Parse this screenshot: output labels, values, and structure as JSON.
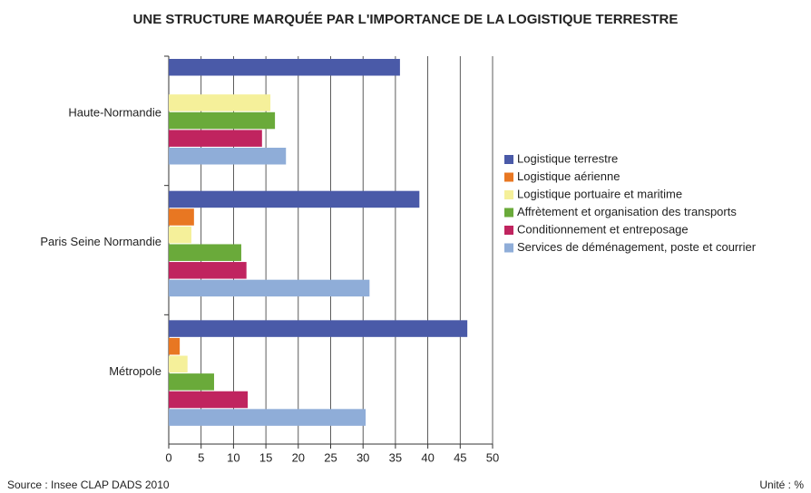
{
  "chart_data": {
    "type": "hbar",
    "title": "UNE STRUCTURE MARQUÉE PAR L'IMPORTANCE DE LA LOGISTIQUE TERRESTRE",
    "categories": [
      "Haute-Normandie",
      "Paris Seine Normandie",
      "Métropole"
    ],
    "series": [
      {
        "name": "Logistique terrestre",
        "color": "#4a5aa8",
        "values": [
          35.7,
          38.7,
          46.1
        ]
      },
      {
        "name": "Logistique aérienne",
        "color": "#e87722",
        "values": [
          null,
          3.9,
          1.7
        ]
      },
      {
        "name": "Logistique portuaire et maritime",
        "color": "#f5f09a",
        "values": [
          15.7,
          3.5,
          2.9
        ]
      },
      {
        "name": "Affrètement et organisation des transports",
        "color": "#6aaa3a",
        "values": [
          16.4,
          11.2,
          7.0
        ]
      },
      {
        "name": "Conditionnement et entreposage",
        "color": "#c0245f",
        "values": [
          14.4,
          12.0,
          12.2
        ]
      },
      {
        "name": "Services de déménagement, poste et courrier",
        "color": "#8fadd8",
        "values": [
          18.1,
          31.0,
          30.4
        ]
      }
    ],
    "xlim": [
      0,
      50
    ],
    "xticks": [
      0,
      5,
      10,
      15,
      20,
      25,
      30,
      35,
      40,
      45,
      50
    ],
    "grid": true,
    "source": "Source : Insee CLAP DADS 2010",
    "unit": "Unité : %"
  }
}
